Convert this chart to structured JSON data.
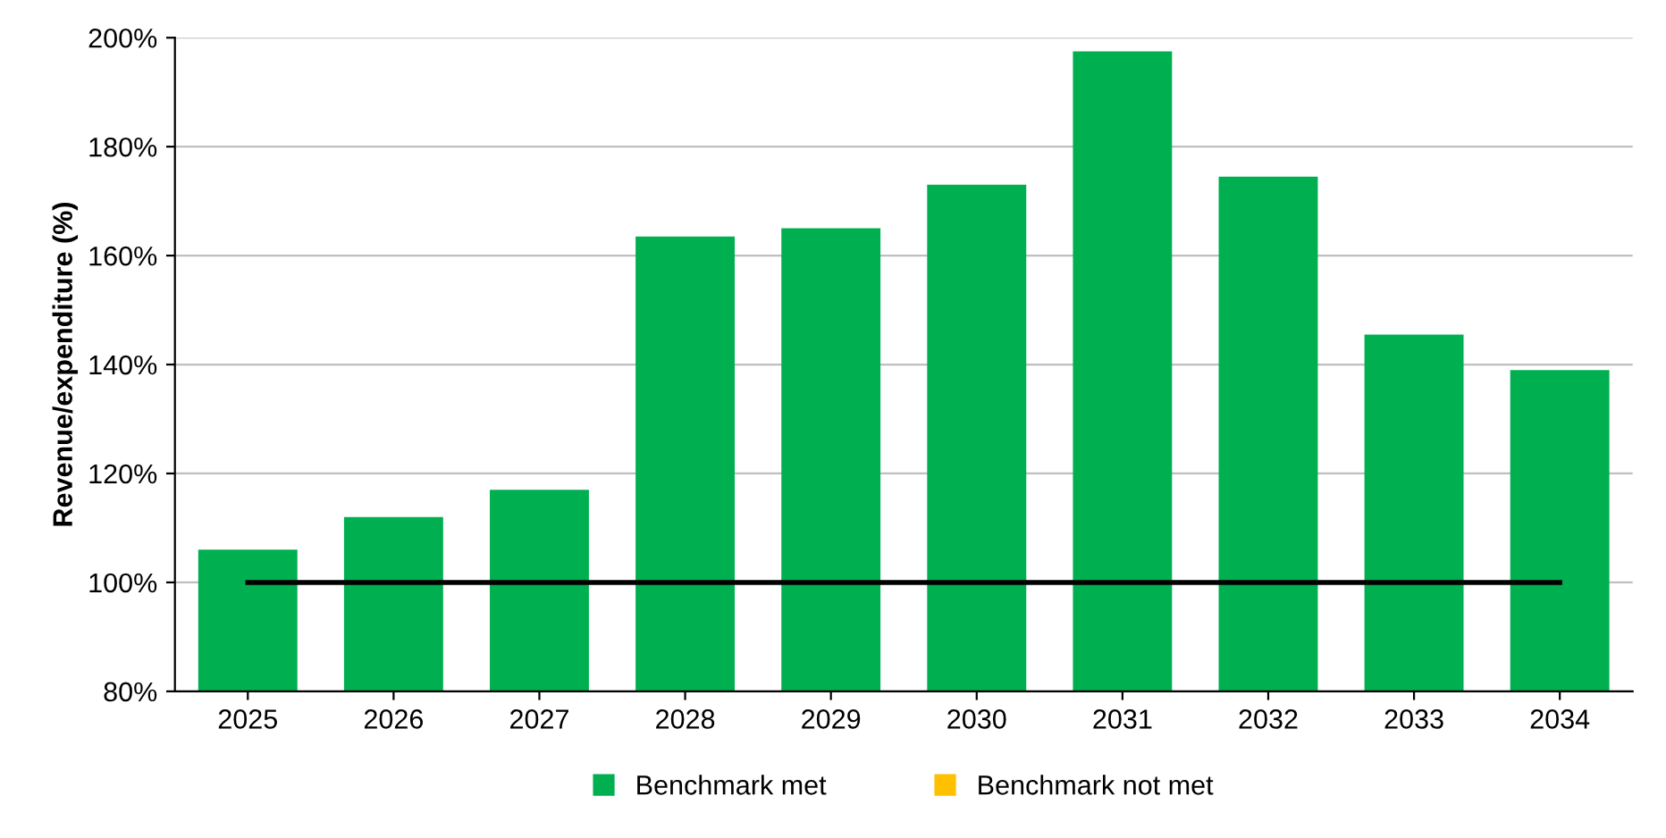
{
  "chart_data": {
    "type": "bar",
    "ylabel": "Revenue/expenditure (%)",
    "categories": [
      "2025",
      "2026",
      "2027",
      "2028",
      "2029",
      "2030",
      "2031",
      "2032",
      "2033",
      "2034"
    ],
    "series": [
      {
        "name": "Benchmark met",
        "color": "#00b050",
        "values": [
          106,
          112,
          117,
          163.5,
          165,
          173,
          197.5,
          174.5,
          145.5,
          139
        ]
      },
      {
        "name": "Benchmark not met",
        "color": "#ffc000",
        "values": [
          null,
          null,
          null,
          null,
          null,
          null,
          null,
          null,
          null,
          null
        ]
      },
      {
        "type": "line",
        "color": "#000000",
        "values": [
          100,
          100,
          100,
          100,
          100,
          100,
          100,
          100,
          100,
          100
        ]
      }
    ],
    "ylim": [
      80,
      200
    ],
    "yticks": [
      {
        "value": 80,
        "label": "80%"
      },
      {
        "value": 100,
        "label": "100%"
      },
      {
        "value": 120,
        "label": "120%"
      },
      {
        "value": 140,
        "label": "140%"
      },
      {
        "value": 160,
        "label": "160%"
      },
      {
        "value": 180,
        "label": "180%"
      },
      {
        "value": 200,
        "label": "200%"
      }
    ],
    "grid": "y",
    "legend": "bottom"
  }
}
